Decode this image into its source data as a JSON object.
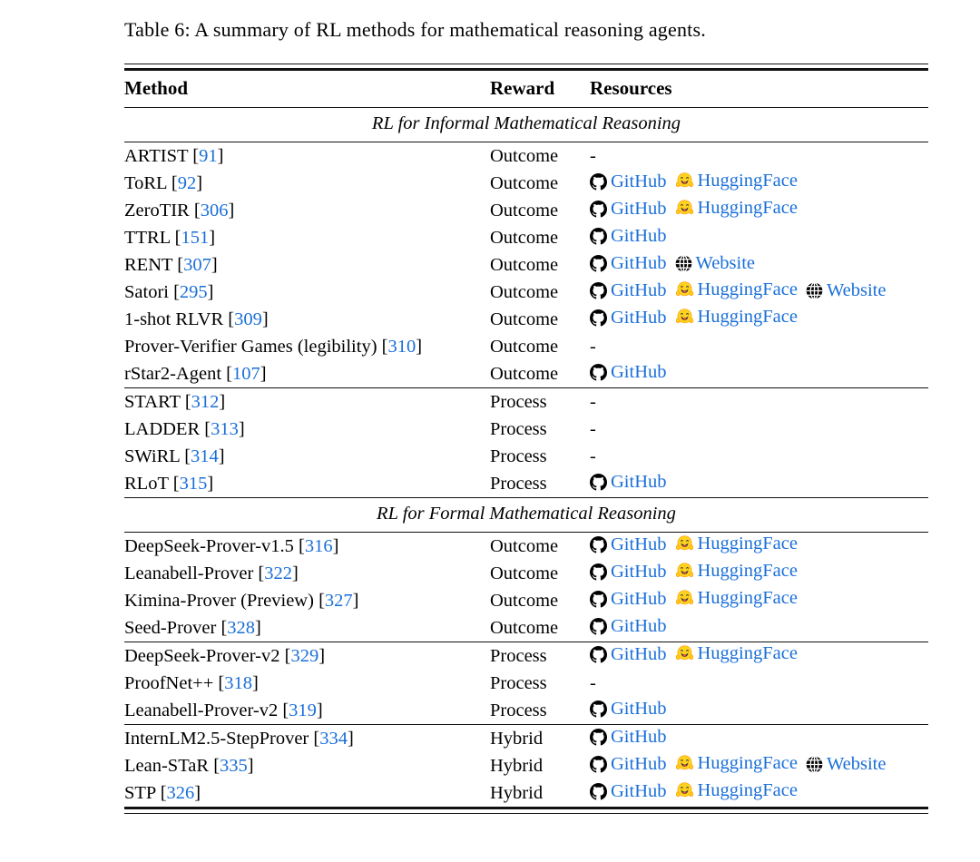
{
  "caption": "Table 6: A summary of RL methods for mathematical reasoning agents.",
  "columns": [
    "Method",
    "Reward",
    "Resources"
  ],
  "empty_marker": "-",
  "colors": {
    "link_blue": "#1a6fd8",
    "text": "#000000",
    "background": "#ffffff",
    "huggingface_yellow": "#FFD21E",
    "icon_black": "#000000"
  },
  "resource_labels": {
    "github": "GitHub",
    "huggingface": "HuggingFace",
    "website": "Website"
  },
  "sections": [
    {
      "heading": "RL for Informal Mathematical Reasoning",
      "groups": [
        [
          {
            "method": "ARTIST",
            "ref": "91",
            "reward": "Outcome",
            "resources": []
          },
          {
            "method": "ToRL",
            "ref": "92",
            "reward": "Outcome",
            "resources": [
              "github",
              "huggingface"
            ]
          },
          {
            "method": "ZeroTIR",
            "ref": "306",
            "reward": "Outcome",
            "resources": [
              "github",
              "huggingface"
            ]
          },
          {
            "method": "TTRL",
            "ref": "151",
            "reward": "Outcome",
            "resources": [
              "github"
            ]
          },
          {
            "method": "RENT",
            "ref": "307",
            "reward": "Outcome",
            "resources": [
              "github",
              "website"
            ]
          },
          {
            "method": "Satori",
            "ref": "295",
            "reward": "Outcome",
            "resources": [
              "github",
              "huggingface",
              "website"
            ]
          },
          {
            "method": "1-shot RLVR",
            "ref": "309",
            "reward": "Outcome",
            "resources": [
              "github",
              "huggingface"
            ]
          },
          {
            "method": "Prover-Verifier Games (legibility)",
            "ref": "310",
            "reward": "Outcome",
            "resources": []
          },
          {
            "method": "rStar2-Agent",
            "ref": "107",
            "reward": "Outcome",
            "resources": [
              "github"
            ]
          }
        ],
        [
          {
            "method": "START",
            "ref": "312",
            "reward": "Process",
            "resources": []
          },
          {
            "method": "LADDER",
            "ref": "313",
            "reward": "Process",
            "resources": []
          },
          {
            "method": "SWiRL",
            "ref": "314",
            "reward": "Process",
            "resources": []
          },
          {
            "method": "RLoT",
            "ref": "315",
            "reward": "Process",
            "resources": [
              "github"
            ]
          }
        ]
      ]
    },
    {
      "heading": "RL for Formal Mathematical Reasoning",
      "groups": [
        [
          {
            "method": "DeepSeek-Prover-v1.5",
            "ref": "316",
            "reward": "Outcome",
            "resources": [
              "github",
              "huggingface"
            ]
          },
          {
            "method": "Leanabell-Prover",
            "ref": "322",
            "reward": "Outcome",
            "resources": [
              "github",
              "huggingface"
            ]
          },
          {
            "method": "Kimina-Prover (Preview)",
            "ref": "327",
            "reward": "Outcome",
            "resources": [
              "github",
              "huggingface"
            ]
          },
          {
            "method": "Seed-Prover",
            "ref": "328",
            "reward": "Outcome",
            "resources": [
              "github"
            ]
          }
        ],
        [
          {
            "method": "DeepSeek-Prover-v2",
            "ref": "329",
            "reward": "Process",
            "resources": [
              "github",
              "huggingface"
            ]
          },
          {
            "method": "ProofNet++",
            "ref": "318",
            "reward": "Process",
            "resources": []
          },
          {
            "method": "Leanabell-Prover-v2",
            "ref": "319",
            "reward": "Process",
            "resources": [
              "github"
            ]
          }
        ],
        [
          {
            "method": "InternLM2.5-StepProver",
            "ref": "334",
            "reward": "Hybrid",
            "resources": [
              "github"
            ]
          },
          {
            "method": "Lean-STaR",
            "ref": "335",
            "reward": "Hybrid",
            "resources": [
              "github",
              "huggingface",
              "website"
            ]
          },
          {
            "method": "STP",
            "ref": "326",
            "reward": "Hybrid",
            "resources": [
              "github",
              "huggingface"
            ]
          }
        ]
      ]
    }
  ]
}
